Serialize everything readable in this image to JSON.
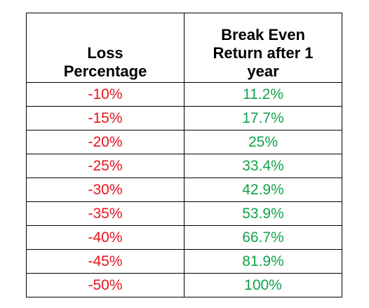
{
  "table": {
    "header": [
      "Loss Percentage",
      "Break Even Return after 1 year"
    ],
    "rows": [
      [
        "-10%",
        "11.2%"
      ],
      [
        "-15%",
        "17.7%"
      ],
      [
        "-20%",
        "25%"
      ],
      [
        "-25%",
        "33.4%"
      ],
      [
        "-30%",
        "42.9%"
      ],
      [
        "-35%",
        "53.9%"
      ],
      [
        "-40%",
        "66.7%"
      ],
      [
        "-45%",
        "81.9%"
      ],
      [
        "-50%",
        "100%"
      ]
    ]
  }
}
